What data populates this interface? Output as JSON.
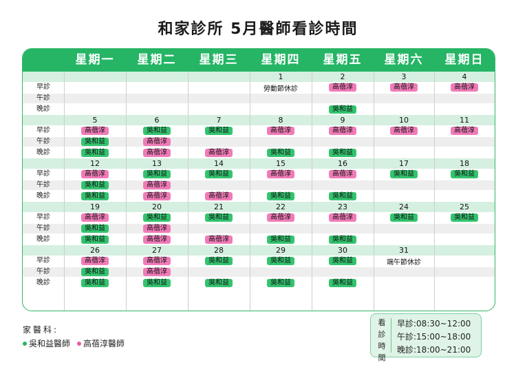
{
  "title": "和家診所 5月醫師看診時間",
  "weekdays": [
    "星期一",
    "星期二",
    "星期三",
    "星期四",
    "星期五",
    "星期六",
    "星期日"
  ],
  "slots": [
    "早診",
    "午診",
    "晚診"
  ],
  "weeks": [
    {
      "dates": [
        "",
        "",
        "",
        "1",
        "2",
        "3",
        "4"
      ],
      "cells": [
        [
          null,
          null,
          null,
          {
            "text": "勞動節休診",
            "type": "note"
          },
          {
            "text": "高蓓淳",
            "color": "pink"
          },
          {
            "text": "高蓓淳",
            "color": "pink"
          },
          {
            "text": "高蓓淳",
            "color": "pink"
          }
        ],
        [
          null,
          null,
          null,
          null,
          null,
          null,
          null
        ],
        [
          null,
          null,
          null,
          null,
          {
            "text": "吳和益",
            "color": "green"
          },
          null,
          null
        ]
      ]
    },
    {
      "dates": [
        "5",
        "6",
        "7",
        "8",
        "9",
        "10",
        "11"
      ],
      "cells": [
        [
          {
            "text": "高蓓淳",
            "color": "pink"
          },
          {
            "text": "吳和益",
            "color": "green"
          },
          {
            "text": "吳和益",
            "color": "green"
          },
          {
            "text": "高蓓淳",
            "color": "pink"
          },
          {
            "text": "高蓓淳",
            "color": "pink"
          },
          {
            "text": "高蓓淳",
            "color": "pink"
          },
          {
            "text": "高蓓淳",
            "color": "pink"
          }
        ],
        [
          {
            "text": "吳和益",
            "color": "green"
          },
          {
            "text": "高蓓淳",
            "color": "pink"
          },
          null,
          null,
          null,
          null,
          null
        ],
        [
          {
            "text": "吳和益",
            "color": "green"
          },
          {
            "text": "高蓓淳",
            "color": "pink"
          },
          {
            "text": "高蓓淳",
            "color": "pink"
          },
          {
            "text": "吳和益",
            "color": "green"
          },
          {
            "text": "吳和益",
            "color": "green"
          },
          null,
          null
        ]
      ]
    },
    {
      "dates": [
        "12",
        "13",
        "14",
        "15",
        "16",
        "17",
        "18"
      ],
      "cells": [
        [
          {
            "text": "高蓓淳",
            "color": "pink"
          },
          {
            "text": "吳和益",
            "color": "green"
          },
          {
            "text": "吳和益",
            "color": "green"
          },
          {
            "text": "高蓓淳",
            "color": "pink"
          },
          {
            "text": "高蓓淳",
            "color": "pink"
          },
          {
            "text": "吳和益",
            "color": "green"
          },
          {
            "text": "吳和益",
            "color": "green"
          }
        ],
        [
          {
            "text": "吳和益",
            "color": "green"
          },
          {
            "text": "高蓓淳",
            "color": "pink"
          },
          null,
          null,
          null,
          null,
          null
        ],
        [
          {
            "text": "吳和益",
            "color": "green"
          },
          {
            "text": "高蓓淳",
            "color": "pink"
          },
          {
            "text": "高蓓淳",
            "color": "pink"
          },
          {
            "text": "吳和益",
            "color": "green"
          },
          {
            "text": "吳和益",
            "color": "green"
          },
          null,
          null
        ]
      ]
    },
    {
      "dates": [
        "19",
        "20",
        "21",
        "22",
        "23",
        "24",
        "25"
      ],
      "cells": [
        [
          {
            "text": "高蓓淳",
            "color": "pink"
          },
          {
            "text": "吳和益",
            "color": "green"
          },
          {
            "text": "吳和益",
            "color": "green"
          },
          {
            "text": "高蓓淳",
            "color": "pink"
          },
          {
            "text": "高蓓淳",
            "color": "pink"
          },
          {
            "text": "吳和益",
            "color": "green"
          },
          {
            "text": "吳和益",
            "color": "green"
          }
        ],
        [
          {
            "text": "吳和益",
            "color": "green"
          },
          {
            "text": "高蓓淳",
            "color": "pink"
          },
          null,
          null,
          null,
          null,
          null
        ],
        [
          {
            "text": "吳和益",
            "color": "green"
          },
          {
            "text": "高蓓淳",
            "color": "pink"
          },
          {
            "text": "高蓓淳",
            "color": "pink"
          },
          {
            "text": "吳和益",
            "color": "green"
          },
          {
            "text": "吳和益",
            "color": "green"
          },
          null,
          null
        ]
      ]
    },
    {
      "dates": [
        "26",
        "27",
        "28",
        "29",
        "30",
        "31",
        ""
      ],
      "cells": [
        [
          {
            "text": "高蓓淳",
            "color": "pink"
          },
          {
            "text": "高蓓淳",
            "color": "pink"
          },
          {
            "text": "吳和益",
            "color": "green"
          },
          {
            "text": "吳和益",
            "color": "green"
          },
          {
            "text": "吳和益",
            "color": "green"
          },
          {
            "text": "端午節休診",
            "type": "note"
          },
          null
        ],
        [
          {
            "text": "吳和益",
            "color": "green"
          },
          {
            "text": "高蓓淳",
            "color": "pink"
          },
          null,
          null,
          null,
          null,
          null
        ],
        [
          {
            "text": "吳和益",
            "color": "green"
          },
          {
            "text": "吳和益",
            "color": "green"
          },
          {
            "text": "吳和益",
            "color": "green"
          },
          {
            "text": "吳和益",
            "color": "green"
          },
          {
            "text": "吳和益",
            "color": "green"
          },
          null,
          null
        ]
      ]
    }
  ],
  "legend": {
    "title": "家醫科:",
    "doctors": [
      {
        "name": "吳和益醫師",
        "color": "green"
      },
      {
        "name": "高蓓淳醫師",
        "color": "pink"
      }
    ]
  },
  "hours": {
    "label": "看診時間",
    "lines": [
      "早診:08:30~12:00",
      "午診:15:00~18:00",
      "晚診:18:00~21:00"
    ]
  },
  "colors": {
    "green": "#25b565",
    "pink": "#f07bb8",
    "header": "#25b565"
  }
}
